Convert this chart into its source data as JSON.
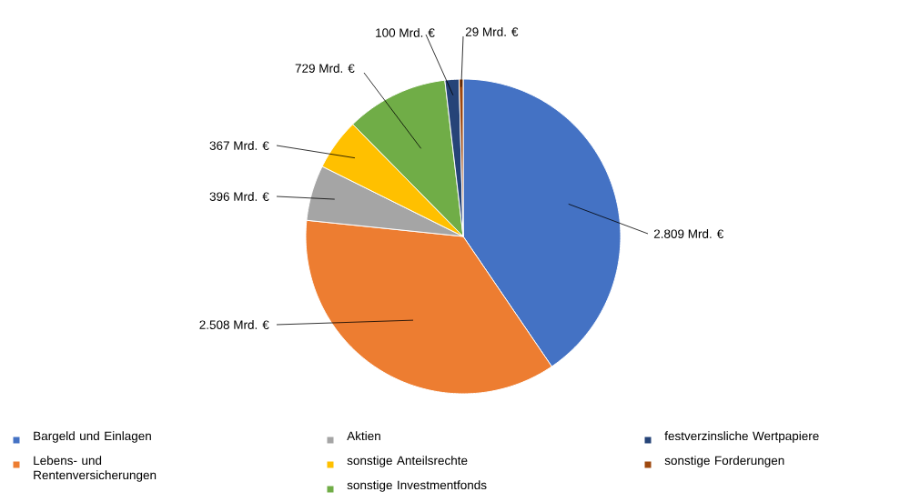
{
  "chart_data": {
    "type": "pie",
    "categories": [
      "Bargeld und Einlagen",
      "Lebens- und Rentenversicherungen",
      "Aktien",
      "sonstige Anteilsrechte",
      "sonstige Investmentfonds",
      "festverzinsliche Wertpapiere",
      "sonstige Forderungen"
    ],
    "values": [
      2809,
      2508,
      396,
      367,
      729,
      100,
      29
    ],
    "colors": [
      "#4472c4",
      "#ed7d31",
      "#a5a5a5",
      "#ffc000",
      "#70ad47",
      "#264478",
      "#9e480e"
    ],
    "value_labels": [
      "2.809 Mrd. €",
      "2.508 Mrd. €",
      "396 Mrd. €",
      "367 Mrd. €",
      "729 Mrd. €",
      "100 Mrd. €",
      "29 Mrd. €"
    ],
    "legend": "bottom"
  }
}
